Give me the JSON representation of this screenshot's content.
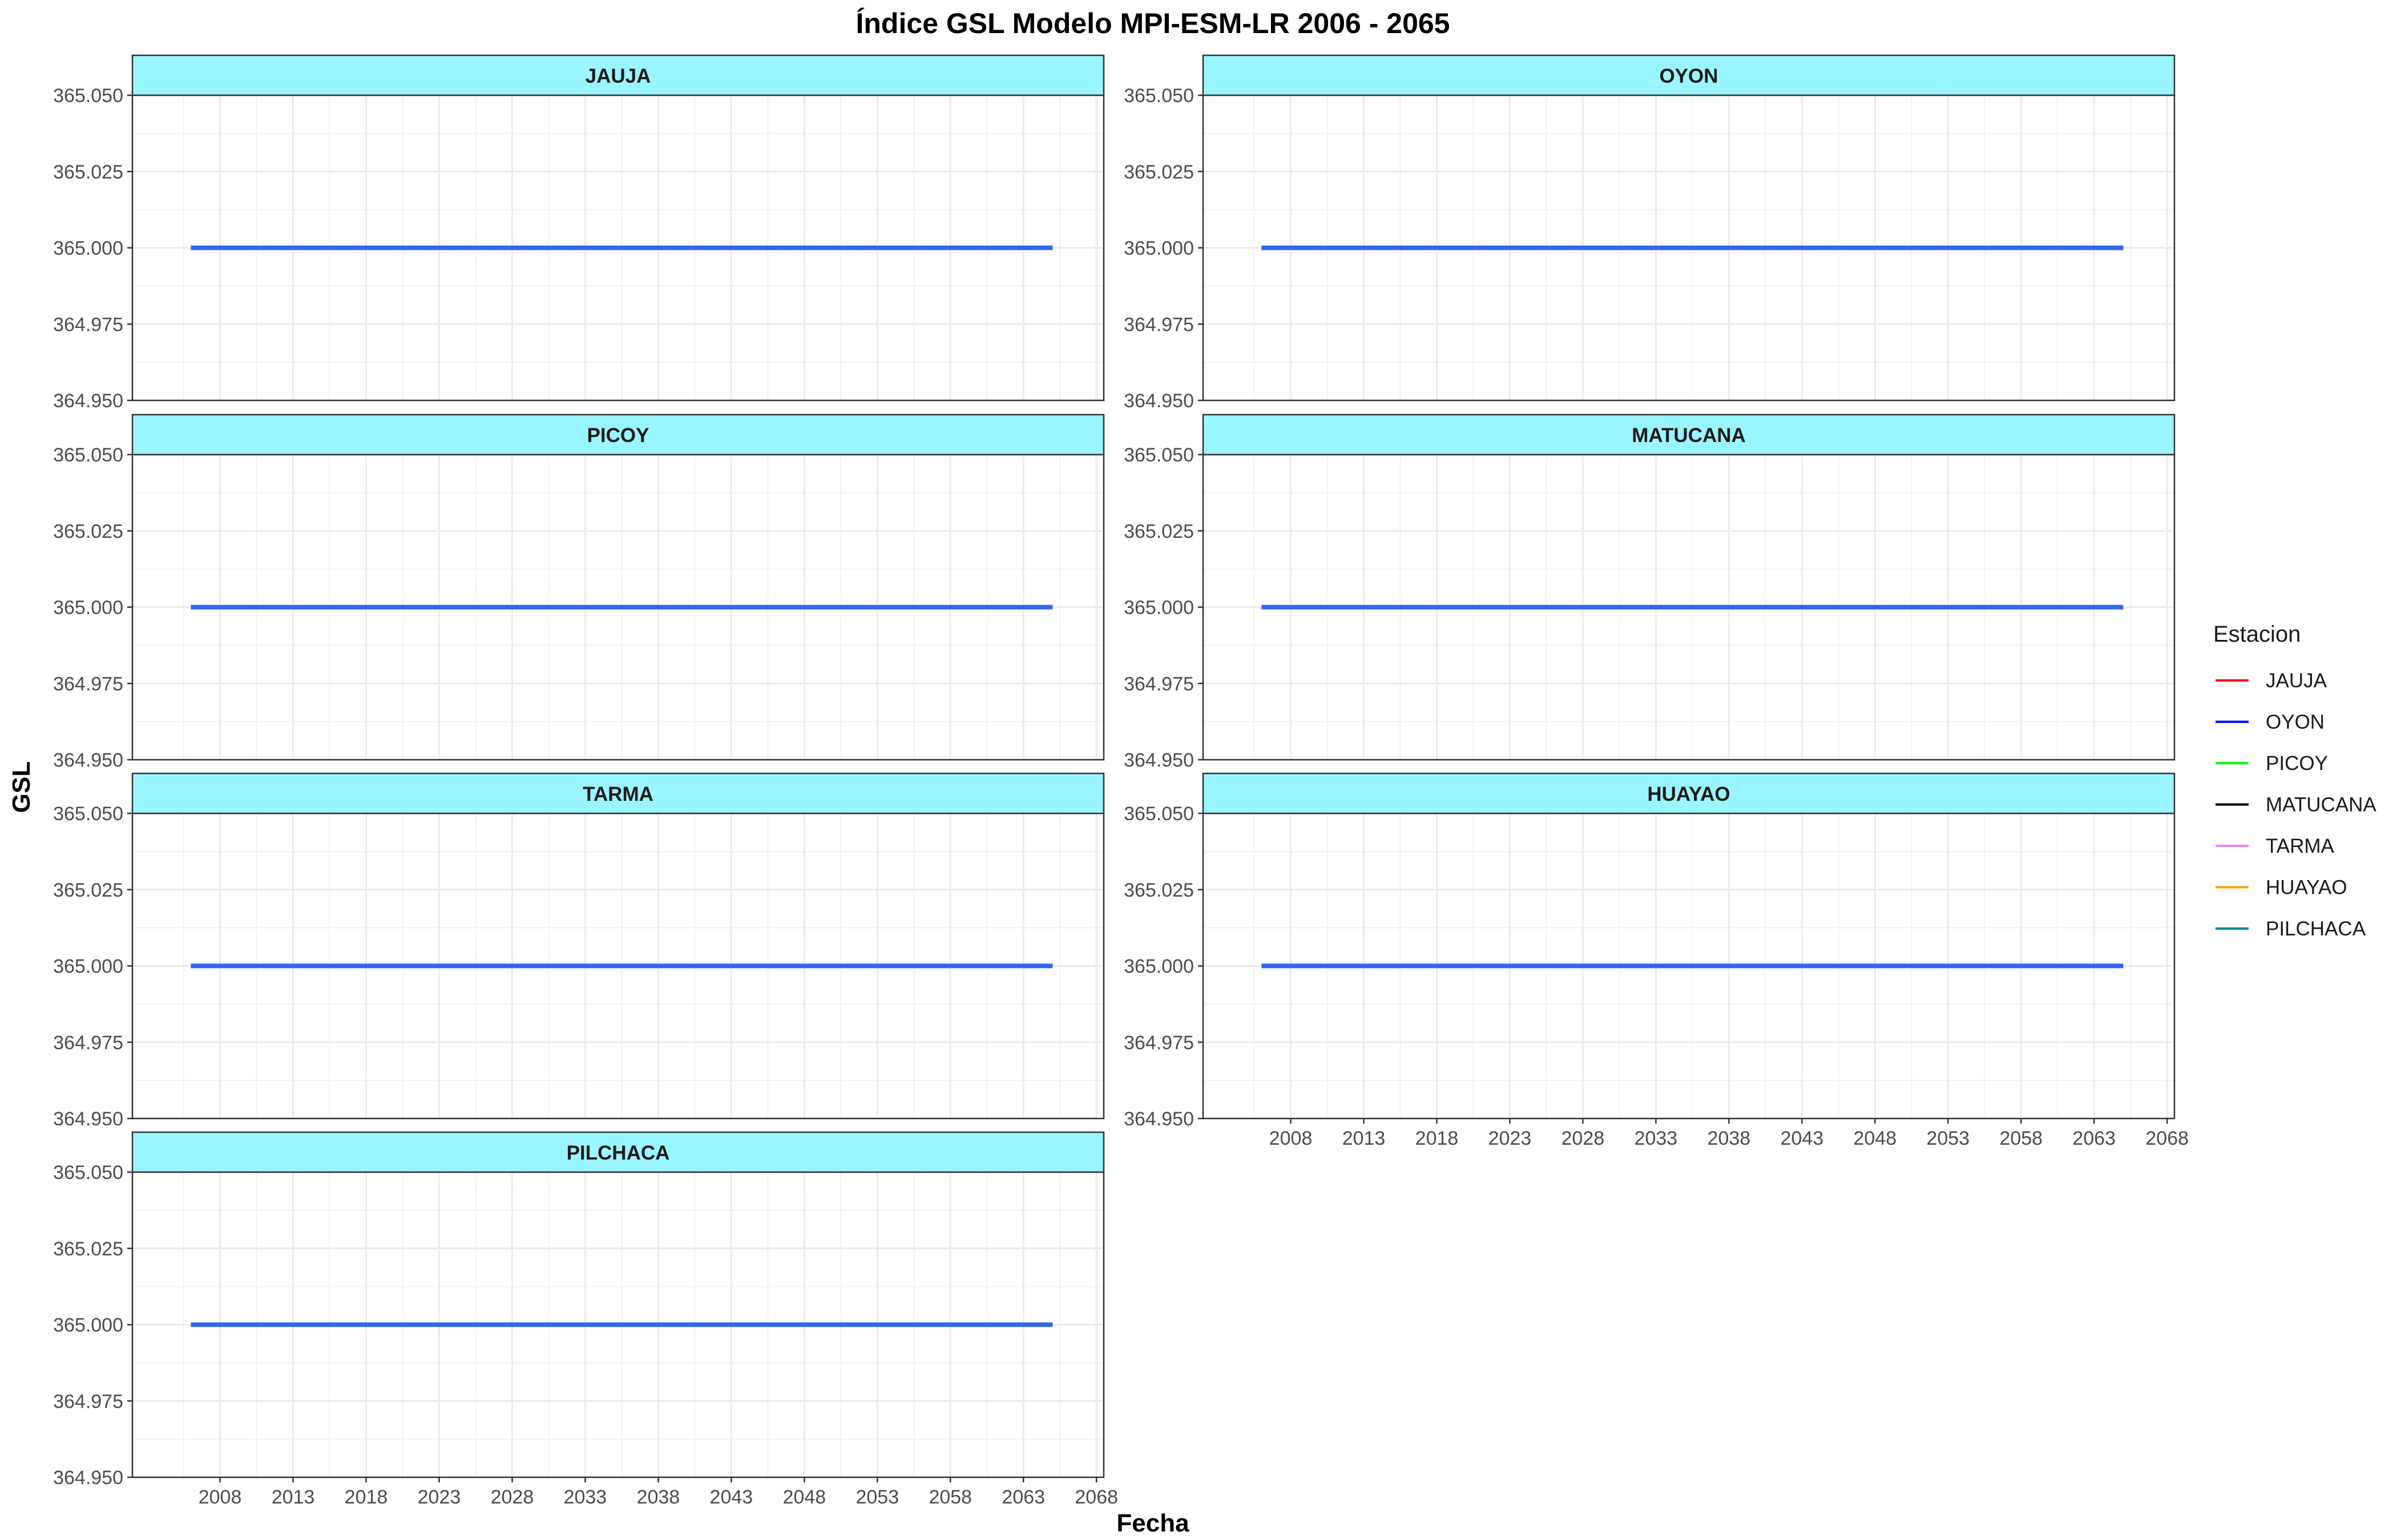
{
  "chart_data": {
    "type": "line",
    "title": "Índice GSL Modelo MPI-ESM-LR 2006 - 2065",
    "xlabel": "Fecha",
    "ylabel": "GSL",
    "xlim": [
      2002,
      2068.5
    ],
    "ylim": [
      364.95,
      365.05
    ],
    "x_ticks": [
      "2008",
      "2013",
      "2018",
      "2023",
      "2028",
      "2033",
      "2038",
      "2043",
      "2048",
      "2053",
      "2058",
      "2063",
      "2068"
    ],
    "x_tick_values": [
      2008,
      2013,
      2018,
      2023,
      2028,
      2033,
      2038,
      2043,
      2048,
      2053,
      2058,
      2063,
      2068
    ],
    "y_ticks": [
      "364.950",
      "364.975",
      "365.000",
      "365.025",
      "365.050"
    ],
    "y_tick_values": [
      364.95,
      364.975,
      365.0,
      365.025,
      365.05
    ],
    "grid": true,
    "line_color": "#3366ee",
    "strip_color": "#99f5ff",
    "panels": [
      {
        "name": "JAUJA",
        "x": [
          2006,
          2065
        ],
        "y": [
          365.0,
          365.0
        ]
      },
      {
        "name": "OYON",
        "x": [
          2006,
          2065
        ],
        "y": [
          365.0,
          365.0
        ]
      },
      {
        "name": "PICOY",
        "x": [
          2006,
          2065
        ],
        "y": [
          365.0,
          365.0
        ]
      },
      {
        "name": "MATUCANA",
        "x": [
          2006,
          2065
        ],
        "y": [
          365.0,
          365.0
        ]
      },
      {
        "name": "TARMA",
        "x": [
          2006,
          2065
        ],
        "y": [
          365.0,
          365.0
        ]
      },
      {
        "name": "HUAYAO",
        "x": [
          2006,
          2065
        ],
        "y": [
          365.0,
          365.0
        ]
      },
      {
        "name": "PILCHACA",
        "x": [
          2006,
          2065
        ],
        "y": [
          365.0,
          365.0
        ]
      }
    ],
    "legend": {
      "title": "Estacion",
      "position": "right",
      "entries": [
        {
          "label": "JAUJA",
          "color": "#ff0000"
        },
        {
          "label": "OYON",
          "color": "#0000ff"
        },
        {
          "label": "PICOY",
          "color": "#00ff00"
        },
        {
          "label": "MATUCANA",
          "color": "#000000"
        },
        {
          "label": "TARMA",
          "color": "#ee82ee"
        },
        {
          "label": "HUAYAO",
          "color": "#ffa500"
        },
        {
          "label": "PILCHACA",
          "color": "#008b8b"
        }
      ]
    }
  }
}
